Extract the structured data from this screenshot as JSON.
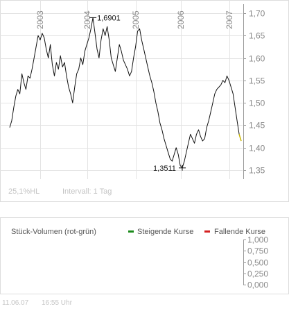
{
  "chart_data": [
    {
      "type": "line",
      "x_axis": "time",
      "years": [
        "2003",
        "2004",
        "2005",
        "2006",
        "2007"
      ],
      "y_ticks": [
        "1,70",
        "1,65",
        "1,60",
        "1,55",
        "1,50",
        "1,45",
        "1,40",
        "1,35"
      ],
      "ylim": [
        1.33,
        1.72
      ],
      "grid": true,
      "high_label": "1,6901",
      "low_label": "1,3511",
      "footer_left": "25,1%HL",
      "footer_interval": "Intervall: 1 Tag",
      "series": [
        {
          "values": [
            1.445,
            1.46,
            1.49,
            1.515,
            1.53,
            1.52,
            1.565,
            1.545,
            1.53,
            1.56,
            1.555,
            1.575,
            1.6,
            1.625,
            1.65,
            1.64,
            1.655,
            1.645,
            1.62,
            1.6,
            1.63,
            1.585,
            1.56,
            1.59,
            1.575,
            1.605,
            1.58,
            1.59,
            1.56,
            1.535,
            1.52,
            1.5,
            1.535,
            1.565,
            1.575,
            1.6,
            1.585,
            1.615,
            1.63,
            1.645,
            1.665,
            1.69,
            1.655,
            1.62,
            1.6,
            1.64,
            1.665,
            1.65,
            1.67,
            1.64,
            1.6,
            1.585,
            1.57,
            1.6,
            1.63,
            1.615,
            1.595,
            1.585,
            1.575,
            1.56,
            1.57,
            1.6,
            1.625,
            1.66,
            1.665,
            1.64,
            1.62,
            1.6,
            1.58,
            1.56,
            1.545,
            1.525,
            1.5,
            1.48,
            1.455,
            1.44,
            1.42,
            1.405,
            1.39,
            1.375,
            1.37,
            1.385,
            1.4,
            1.385,
            1.36,
            1.355,
            1.37,
            1.39,
            1.41,
            1.43,
            1.42,
            1.41,
            1.43,
            1.44,
            1.425,
            1.415,
            1.42,
            1.445,
            1.46,
            1.48,
            1.5,
            1.52,
            1.53,
            1.535,
            1.54,
            1.55,
            1.545,
            1.56,
            1.55,
            1.535,
            1.52,
            1.49,
            1.46,
            1.43,
            1.415
          ]
        }
      ]
    },
    {
      "type": "bar",
      "title": "Stück-Volumen (rot-grün)",
      "legend": [
        {
          "label": "Steigende Kurse",
          "color": "#1a8a1a"
        },
        {
          "label": "Fallende Kurse",
          "color": "#d42020"
        }
      ],
      "y_ticks": [
        "1,000",
        "0,750",
        "0,500",
        "0,250",
        "0,000"
      ],
      "ylim": [
        0,
        1
      ],
      "series": [
        {
          "name": "Steigende Kurse",
          "values": []
        },
        {
          "name": "Fallende Kurse",
          "values": []
        }
      ]
    }
  ],
  "footer": {
    "date": "11.06.07",
    "time": "16:55 Uhr"
  },
  "colors": {
    "line": "#111111",
    "last_segment": "#c8b400",
    "grid": "#e3e3e3",
    "axis_text": "#888888",
    "faint_text": "#c4c4c4"
  }
}
